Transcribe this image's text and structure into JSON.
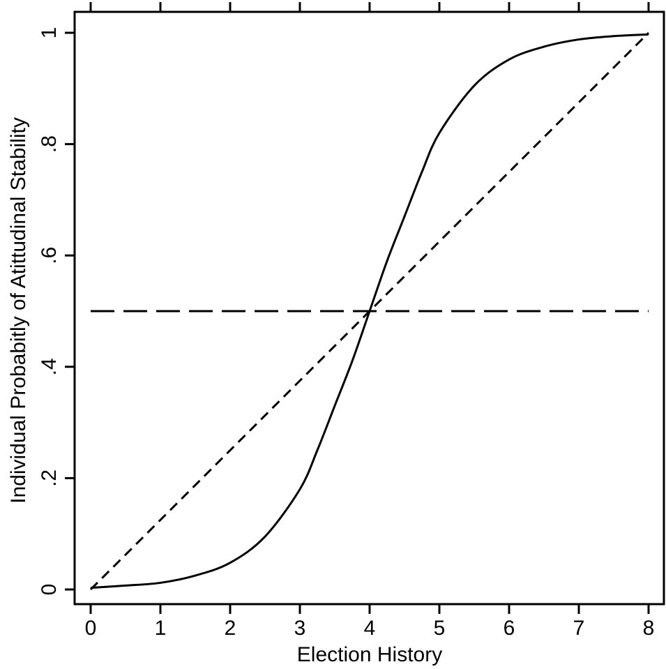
{
  "chart_data": {
    "type": "line",
    "title": "",
    "xlabel": "Election History",
    "ylabel": "Individual Probabitly of Atittudinal Stability",
    "xlim": [
      0,
      8
    ],
    "ylim": [
      0,
      1
    ],
    "x_ticks": [
      0,
      1,
      2,
      3,
      4,
      5,
      6,
      7,
      8
    ],
    "x_tick_labels": [
      "0",
      "1",
      "2",
      "3",
      "4",
      "5",
      "6",
      "7",
      "8"
    ],
    "y_ticks": [
      0,
      0.2,
      0.4,
      0.6,
      0.8,
      1
    ],
    "y_tick_labels": [
      "0",
      ".2",
      ".4",
      ".6",
      ".8",
      "1"
    ],
    "grid": false,
    "legend": "none",
    "series": [
      {
        "style": "solid",
        "color": "#000000",
        "x": [
          0,
          0.5,
          1,
          1.5,
          2,
          2.5,
          3,
          3.25,
          3.5,
          3.75,
          4,
          4.25,
          4.5,
          4.75,
          5,
          5.5,
          6,
          6.5,
          7,
          7.5,
          8
        ],
        "y": [
          0.003,
          0.007,
          0.012,
          0.025,
          0.048,
          0.095,
          0.18,
          0.25,
          0.33,
          0.41,
          0.5,
          0.59,
          0.67,
          0.75,
          0.82,
          0.905,
          0.952,
          0.975,
          0.988,
          0.994,
          0.997
        ]
      },
      {
        "style": "dashed",
        "color": "#000000",
        "x": [
          0,
          8
        ],
        "y": [
          0,
          1
        ]
      },
      {
        "style": "longdash",
        "color": "#000000",
        "x": [
          0,
          8
        ],
        "y": [
          0.5,
          0.5
        ]
      }
    ]
  }
}
